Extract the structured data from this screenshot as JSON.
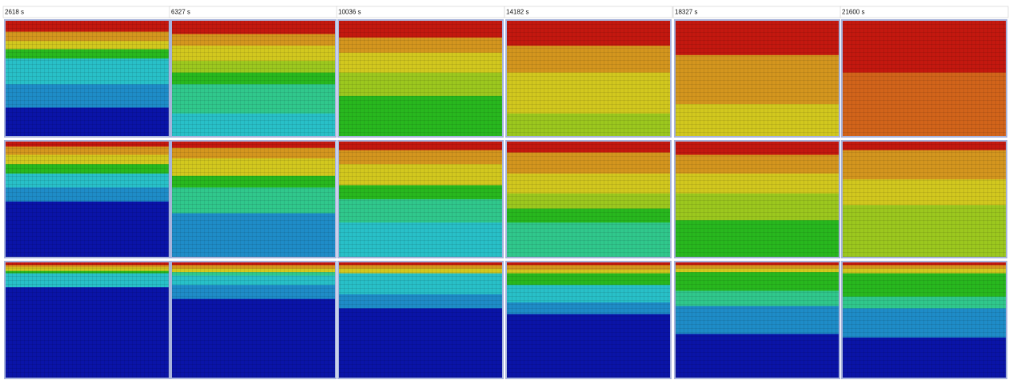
{
  "header": {
    "columns": [
      "2618 s",
      "6327 s",
      "10036 s",
      "14182 s",
      "18327 s",
      "21600 s"
    ]
  }
}
